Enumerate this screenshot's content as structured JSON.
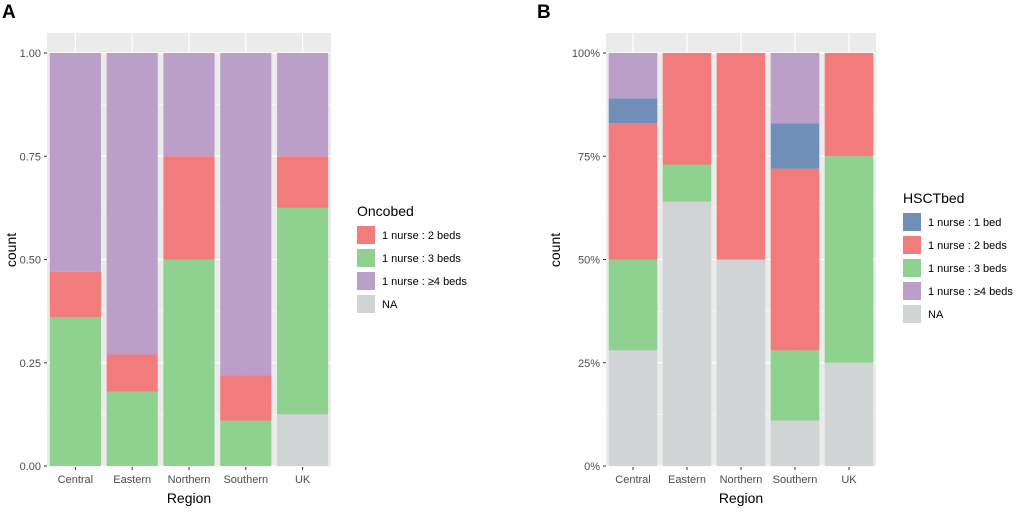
{
  "colors": {
    "panel_bg": "#ebebeb",
    "grid": "#ffffff",
    "nurse_1_bed": "#6f8fb8",
    "nurse_2_beds": "#f27b7b",
    "nurse_3_beds": "#8fd18f",
    "nurse_4plus_beds": "#bb9fc8",
    "na": "#d0d4d4"
  },
  "chart_data": [
    {
      "panel_label": "A",
      "type": "bar",
      "stacked": true,
      "title": "",
      "xlabel": "Region",
      "ylabel": "count",
      "ylim": [
        0,
        1
      ],
      "categories": [
        "Central",
        "Eastern",
        "Northern",
        "Southern",
        "UK"
      ],
      "y_ticks": [
        0,
        0.25,
        0.5,
        0.75,
        1
      ],
      "y_tick_labels": [
        "0.00",
        "0.25",
        "0.50",
        "0.75",
        "1.00"
      ],
      "legend_title": "Oncobed",
      "legend_position": "right",
      "series": [
        {
          "name": "NA",
          "color_key": "na",
          "values": [
            0,
            0,
            0,
            0,
            0.125
          ]
        },
        {
          "name": "1 nurse : 3 beds",
          "color_key": "nurse_3_beds",
          "values": [
            0.36,
            0.18,
            0.5,
            0.11,
            0.5
          ]
        },
        {
          "name": "1 nurse : 2 beds",
          "color_key": "nurse_2_beds",
          "values": [
            0.11,
            0.09,
            0.25,
            0.11,
            0.125
          ]
        },
        {
          "name": "1 nurse : ≥4 beds",
          "color_key": "nurse_4plus_beds",
          "values": [
            0.53,
            0.73,
            0.25,
            0.78,
            0.25
          ]
        }
      ],
      "legend_order": [
        "1 nurse : 2 beds",
        "1 nurse : 3 beds",
        "1 nurse : ≥4 beds",
        "NA"
      ]
    },
    {
      "panel_label": "B",
      "type": "bar",
      "stacked": true,
      "title": "",
      "xlabel": "Region",
      "ylabel": "count",
      "ylim": [
        0,
        1
      ],
      "categories": [
        "Central",
        "Eastern",
        "Northern",
        "Southern",
        "UK"
      ],
      "y_ticks": [
        0,
        0.25,
        0.5,
        0.75,
        1
      ],
      "y_tick_labels": [
        "0%",
        "25%",
        "50%",
        "75%",
        "100%"
      ],
      "legend_title": "HSCTbed",
      "legend_position": "right",
      "series": [
        {
          "name": "NA",
          "color_key": "na",
          "values": [
            0.28,
            0.64,
            0.5,
            0.11,
            0.25
          ]
        },
        {
          "name": "1 nurse : 3 beds",
          "color_key": "nurse_3_beds",
          "values": [
            0.22,
            0.09,
            0,
            0.17,
            0.5
          ]
        },
        {
          "name": "1 nurse : 2 beds",
          "color_key": "nurse_2_beds",
          "values": [
            0.33,
            0.27,
            0.5,
            0.44,
            0.25
          ]
        },
        {
          "name": "1 nurse : 1 bed",
          "color_key": "nurse_1_bed",
          "values": [
            0.06,
            0,
            0,
            0.11,
            0
          ]
        },
        {
          "name": "1 nurse : ≥4 beds",
          "color_key": "nurse_4plus_beds",
          "values": [
            0.11,
            0,
            0,
            0.17,
            0
          ]
        }
      ],
      "legend_order": [
        "1 nurse : 1 bed",
        "1 nurse : 2 beds",
        "1 nurse : 3 beds",
        "1 nurse : ≥4 beds",
        "NA"
      ]
    }
  ]
}
